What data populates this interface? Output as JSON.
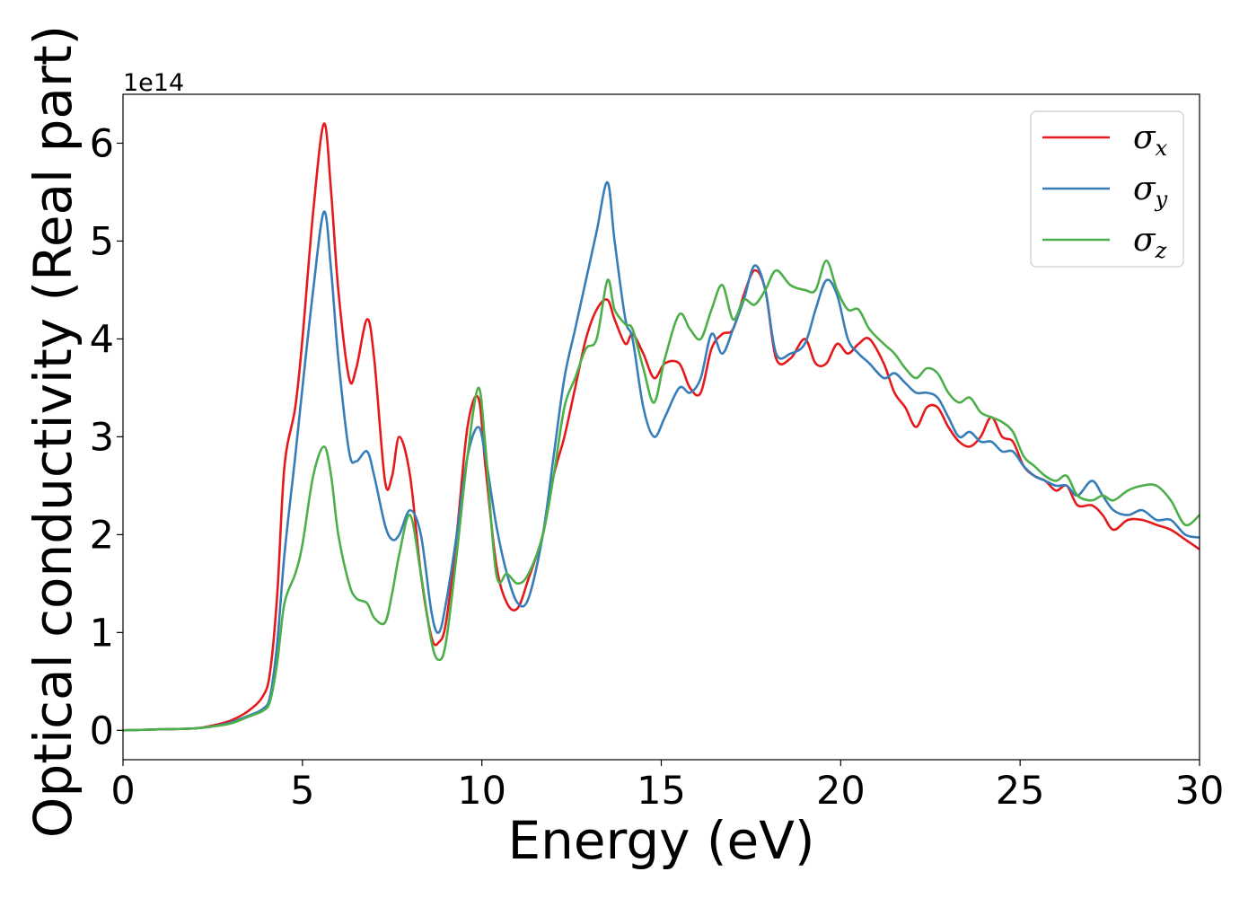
{
  "chart_data": {
    "type": "line",
    "title": "",
    "xlabel": "Energy (eV)",
    "ylabel": "Optical conductivity (Real part)",
    "y_offset_text": "1e14",
    "xlim": [
      0,
      30
    ],
    "ylim": [
      -0.3,
      6.5
    ],
    "xticks": [
      0,
      5,
      10,
      15,
      20,
      25,
      30
    ],
    "xtick_labels": [
      "0",
      "5",
      "10",
      "15",
      "20",
      "25",
      "30"
    ],
    "yticks": [
      0,
      1,
      2,
      3,
      4,
      5,
      6
    ],
    "ytick_labels": [
      "0",
      "1",
      "2",
      "3",
      "4",
      "5",
      "6"
    ],
    "grid": false,
    "legend_position": "top-right",
    "series": [
      {
        "name": "σx",
        "base": "σ",
        "sub": "x",
        "color": "#e41a1c",
        "x": [
          0,
          1,
          2,
          2.5,
          3,
          3.5,
          3.9,
          4.1,
          4.3,
          4.5,
          4.8,
          5.0,
          5.3,
          5.6,
          5.8,
          6.0,
          6.3,
          6.5,
          6.8,
          7.0,
          7.3,
          7.5,
          7.7,
          8.0,
          8.3,
          8.6,
          8.8,
          9.0,
          9.3,
          9.6,
          9.9,
          10.1,
          10.4,
          10.7,
          11.0,
          11.3,
          11.7,
          12.0,
          12.3,
          12.6,
          12.9,
          13.2,
          13.5,
          13.7,
          14.0,
          14.2,
          14.5,
          14.8,
          15.1,
          15.5,
          15.8,
          16.1,
          16.4,
          16.7,
          17.0,
          17.3,
          17.6,
          17.9,
          18.2,
          18.6,
          19.0,
          19.3,
          19.6,
          19.9,
          20.2,
          20.5,
          20.8,
          21.2,
          21.5,
          21.8,
          22.1,
          22.4,
          22.7,
          23.0,
          23.3,
          23.6,
          23.9,
          24.2,
          24.5,
          24.8,
          25.1,
          25.4,
          25.7,
          26.0,
          26.3,
          26.6,
          27.0,
          27.3,
          27.6,
          28.0,
          28.4,
          28.8,
          29.2,
          29.6,
          30.0
        ],
        "y": [
          0,
          0.01,
          0.02,
          0.05,
          0.1,
          0.2,
          0.35,
          0.6,
          1.4,
          2.7,
          3.3,
          4.0,
          5.3,
          6.2,
          5.5,
          4.5,
          3.6,
          3.7,
          4.2,
          3.8,
          2.55,
          2.6,
          3.0,
          2.6,
          1.6,
          0.95,
          0.9,
          1.1,
          2.0,
          3.1,
          3.4,
          2.7,
          1.7,
          1.3,
          1.25,
          1.55,
          2.0,
          2.6,
          3.0,
          3.5,
          4.0,
          4.3,
          4.4,
          4.2,
          3.95,
          4.05,
          3.85,
          3.6,
          3.75,
          3.75,
          3.5,
          3.45,
          3.9,
          4.05,
          4.1,
          4.45,
          4.7,
          4.5,
          3.8,
          3.8,
          4.0,
          3.75,
          3.75,
          3.95,
          3.85,
          3.95,
          4.0,
          3.75,
          3.45,
          3.3,
          3.1,
          3.3,
          3.3,
          3.1,
          2.95,
          2.9,
          3.0,
          3.2,
          3.0,
          2.95,
          2.7,
          2.6,
          2.55,
          2.45,
          2.5,
          2.3,
          2.3,
          2.2,
          2.05,
          2.15,
          2.15,
          2.1,
          2.05,
          1.95,
          1.85
        ]
      },
      {
        "name": "σy",
        "base": "σ",
        "sub": "y",
        "color": "#377eb8",
        "x": [
          0,
          1,
          2,
          2.5,
          3,
          3.5,
          3.9,
          4.1,
          4.3,
          4.5,
          4.8,
          5.0,
          5.3,
          5.6,
          5.8,
          6.0,
          6.3,
          6.5,
          6.8,
          7.0,
          7.3,
          7.5,
          7.7,
          8.0,
          8.3,
          8.6,
          8.8,
          9.0,
          9.3,
          9.6,
          9.9,
          10.1,
          10.4,
          10.7,
          11.0,
          11.3,
          11.7,
          12.0,
          12.3,
          12.6,
          12.9,
          13.2,
          13.5,
          13.7,
          14.0,
          14.2,
          14.5,
          14.8,
          15.1,
          15.5,
          15.8,
          16.1,
          16.4,
          16.7,
          17.0,
          17.3,
          17.6,
          17.9,
          18.2,
          18.6,
          19.0,
          19.3,
          19.6,
          19.9,
          20.2,
          20.5,
          20.8,
          21.2,
          21.5,
          21.8,
          22.1,
          22.4,
          22.7,
          23.0,
          23.3,
          23.6,
          23.9,
          24.2,
          24.5,
          24.8,
          25.1,
          25.4,
          25.7,
          26.0,
          26.3,
          26.6,
          27.0,
          27.3,
          27.6,
          28.0,
          28.4,
          28.8,
          29.2,
          29.6,
          30.0
        ],
        "y": [
          0,
          0.01,
          0.02,
          0.04,
          0.08,
          0.15,
          0.22,
          0.35,
          0.9,
          1.8,
          2.8,
          3.5,
          4.5,
          5.3,
          4.7,
          3.8,
          2.85,
          2.75,
          2.85,
          2.6,
          2.1,
          1.95,
          2.0,
          2.25,
          2.0,
          1.2,
          1.0,
          1.3,
          2.0,
          2.8,
          3.1,
          2.8,
          2.1,
          1.6,
          1.3,
          1.35,
          2.0,
          2.8,
          3.6,
          4.1,
          4.6,
          5.1,
          5.6,
          5.0,
          4.2,
          4.0,
          3.3,
          3.0,
          3.2,
          3.5,
          3.45,
          3.6,
          4.05,
          3.85,
          4.1,
          4.4,
          4.75,
          4.5,
          3.85,
          3.85,
          3.95,
          4.3,
          4.6,
          4.45,
          4.0,
          3.85,
          3.75,
          3.6,
          3.65,
          3.55,
          3.45,
          3.45,
          3.4,
          3.2,
          3.0,
          3.05,
          2.95,
          2.95,
          2.85,
          2.85,
          2.7,
          2.6,
          2.55,
          2.5,
          2.5,
          2.4,
          2.55,
          2.4,
          2.25,
          2.2,
          2.25,
          2.15,
          2.15,
          2.0,
          1.97
        ]
      },
      {
        "name": "σz",
        "base": "σ",
        "sub": "z",
        "color": "#4daf4a",
        "x": [
          0,
          1,
          2,
          2.5,
          3,
          3.5,
          3.9,
          4.1,
          4.3,
          4.5,
          4.8,
          5.0,
          5.3,
          5.6,
          5.8,
          6.0,
          6.3,
          6.5,
          6.8,
          7.0,
          7.3,
          7.5,
          7.7,
          8.0,
          8.3,
          8.6,
          8.8,
          9.0,
          9.3,
          9.6,
          9.9,
          10.1,
          10.4,
          10.7,
          11.0,
          11.3,
          11.7,
          12.0,
          12.3,
          12.6,
          12.9,
          13.2,
          13.5,
          13.7,
          14.0,
          14.2,
          14.5,
          14.8,
          15.1,
          15.5,
          15.8,
          16.1,
          16.4,
          16.7,
          17.0,
          17.3,
          17.6,
          17.9,
          18.2,
          18.6,
          19.0,
          19.3,
          19.6,
          19.9,
          20.2,
          20.5,
          20.8,
          21.2,
          21.5,
          21.8,
          22.1,
          22.4,
          22.7,
          23.0,
          23.3,
          23.6,
          23.9,
          24.2,
          24.5,
          24.8,
          25.1,
          25.4,
          25.7,
          26.0,
          26.3,
          26.6,
          27.0,
          27.3,
          27.6,
          28.0,
          28.4,
          28.8,
          29.2,
          29.6,
          30.0
        ],
        "y": [
          0,
          0.01,
          0.02,
          0.04,
          0.07,
          0.14,
          0.2,
          0.3,
          0.7,
          1.3,
          1.6,
          1.9,
          2.6,
          2.9,
          2.6,
          2.0,
          1.5,
          1.35,
          1.3,
          1.15,
          1.1,
          1.4,
          1.8,
          2.2,
          1.6,
          0.9,
          0.72,
          0.9,
          1.8,
          2.8,
          3.5,
          2.9,
          1.6,
          1.6,
          1.5,
          1.6,
          2.0,
          2.6,
          3.3,
          3.6,
          3.9,
          4.0,
          4.6,
          4.3,
          4.15,
          4.1,
          3.7,
          3.35,
          3.8,
          4.25,
          4.1,
          4.0,
          4.3,
          4.55,
          4.2,
          4.4,
          4.35,
          4.5,
          4.7,
          4.55,
          4.5,
          4.5,
          4.8,
          4.5,
          4.3,
          4.3,
          4.1,
          3.95,
          3.85,
          3.7,
          3.6,
          3.7,
          3.65,
          3.45,
          3.35,
          3.4,
          3.25,
          3.2,
          3.15,
          3.05,
          2.8,
          2.7,
          2.6,
          2.55,
          2.6,
          2.4,
          2.35,
          2.4,
          2.35,
          2.45,
          2.5,
          2.5,
          2.35,
          2.1,
          2.2
        ]
      }
    ]
  }
}
